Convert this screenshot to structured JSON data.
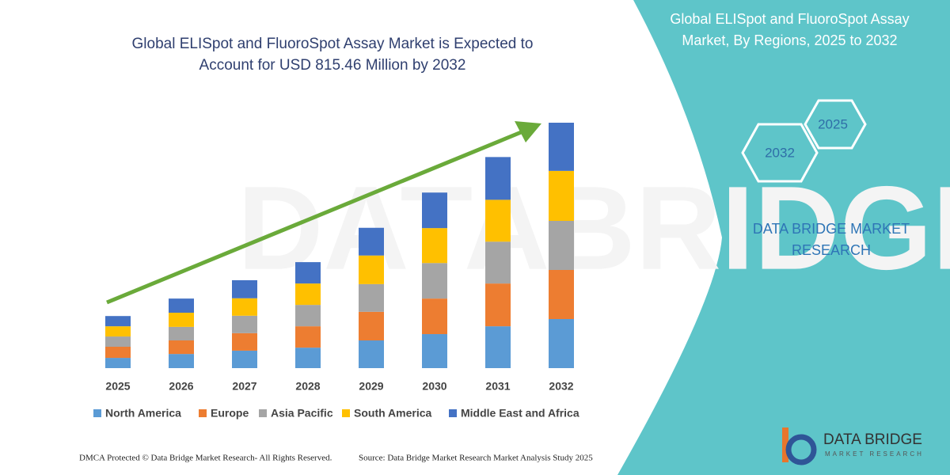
{
  "chart_data": {
    "type": "stacked_bar",
    "title": "Global ELISpot and FluoroSpot Assay Market is Expected to Account for USD 815.46 Million by 2032",
    "categories": [
      "2025",
      "2026",
      "2027",
      "2028",
      "2029",
      "2030",
      "2031",
      "2032"
    ],
    "series": [
      {
        "name": "North America",
        "color": "#5b9bd5",
        "values": [
          34,
          47,
          58,
          68,
          92,
          113,
          139,
          163
        ]
      },
      {
        "name": "Europe",
        "color": "#ed7d31",
        "values": [
          37,
          45,
          58,
          71,
          95,
          118,
          142,
          163
        ]
      },
      {
        "name": "Asia Pacific",
        "color": "#a5a5a5",
        "values": [
          34,
          45,
          58,
          71,
          92,
          118,
          139,
          163
        ]
      },
      {
        "name": "South America",
        "color": "#ffc000",
        "values": [
          34,
          47,
          58,
          71,
          95,
          116,
          139,
          166
        ]
      },
      {
        "name": "Middle East and Africa",
        "color": "#4472c4",
        "values": [
          34,
          47,
          60,
          71,
          92,
          118,
          142,
          160
        ]
      }
    ],
    "legend": "bottom"
  },
  "side_panel": {
    "title": "Global ELISpot and FluoroSpot Assay Market, By Regions, 2025 to 2032",
    "hex_labels": [
      "2025",
      "2032"
    ],
    "brand": "DATA BRIDGE MARKET RESEARCH"
  },
  "footer": {
    "left": "DMCA Protected © Data Bridge Market Research-  All Rights Reserved.",
    "right": "Source: Data Bridge Market Research  Market Analysis Study 2025"
  },
  "logo": {
    "name": "DATA BRIDGE",
    "tagline": "MARKET RESEARCH"
  }
}
